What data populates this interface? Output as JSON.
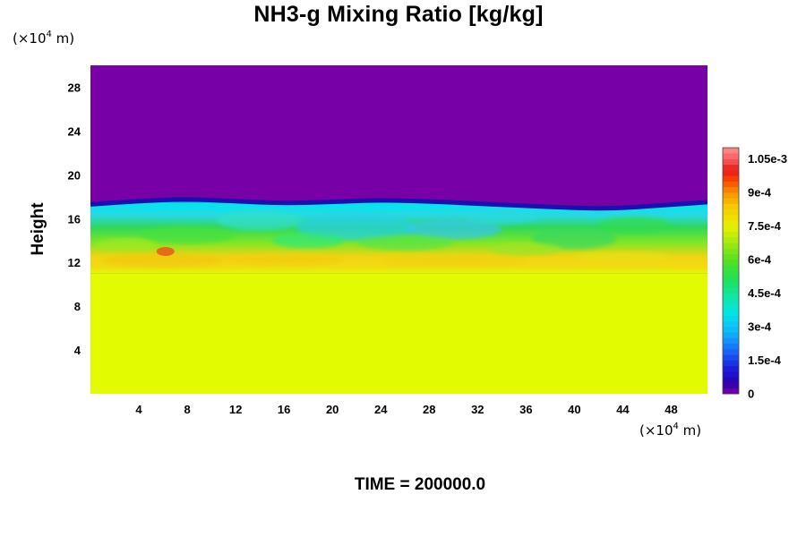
{
  "header": {
    "title": "NH3-g Mixing Ratio [kg/kg]",
    "y_unit_prefix": "(×10",
    "y_unit_exp": "4",
    "y_unit_suffix": " m)",
    "x_unit_prefix": "(×10",
    "x_unit_exp": "4",
    "x_unit_suffix": " m)",
    "ylabel": "Height"
  },
  "footer": {
    "time_label": "TIME = 200000.0"
  },
  "chart_data": {
    "type": "heatmap",
    "title": "NH3-g Mixing Ratio [kg/kg]",
    "xlabel": "",
    "ylabel": "Height",
    "x_ticks": [
      "4",
      "8",
      "12",
      "16",
      "20",
      "24",
      "28",
      "32",
      "36",
      "40",
      "44",
      "48"
    ],
    "y_ticks": [
      "4",
      "8",
      "12",
      "16",
      "20",
      "24",
      "28"
    ],
    "x_tick_values": [
      4,
      8,
      12,
      16,
      20,
      24,
      28,
      32,
      36,
      40,
      44,
      48
    ],
    "y_tick_values": [
      4,
      8,
      12,
      16,
      20,
      24,
      28
    ],
    "xlim": [
      0,
      51
    ],
    "ylim": [
      0,
      30
    ],
    "colorbar": {
      "min": 0,
      "max": 0.0011,
      "labels": [
        "0",
        "1.5e-4",
        "3e-4",
        "4.5e-4",
        "6e-4",
        "7.5e-4",
        "9e-4",
        "1.05e-3"
      ],
      "label_values": [
        0,
        0.00015,
        0.0003,
        0.00045,
        0.0006,
        0.00075,
        0.0009,
        0.00105
      ]
    },
    "fields": {
      "upper_region": {
        "height_range": [
          17.5,
          30
        ],
        "value": 0
      },
      "mixing_layer": {
        "height_range": [
          11,
          17.5
        ],
        "value_range": [
          0.0002,
          0.0008
        ]
      },
      "lower_region": {
        "height_range": [
          0,
          11
        ],
        "value": 0.00075
      }
    },
    "boundary_height": [
      17.3,
      17.6,
      17.8,
      17.6,
      17.4,
      17.5,
      17.7,
      17.6,
      17.4,
      17.2,
      17.0,
      16.9,
      17.2,
      17.5
    ]
  }
}
